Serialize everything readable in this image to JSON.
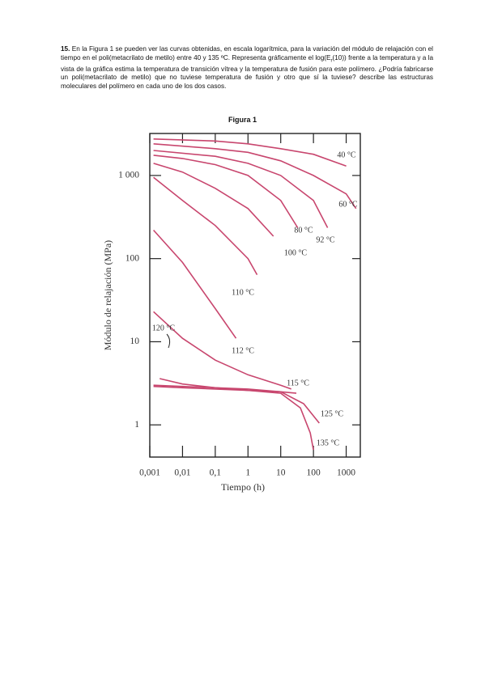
{
  "question": {
    "number": "15.",
    "text_before": "En la Figura 1 se pueden ver las curvas obtenidas, en escala logarítmica, para la variación del módulo de relajación con el tiempo en el poli(metacrilato de metilo) entre 40 y 135 ºC. Representa gráficamente el log(E",
    "subscript": "r",
    "text_after": "(10)) frente a la temperatura y a la vista de la gráfica estima la temperatura de transición vítrea y la temperatura de fusión para este polímero. ¿Podría fabricarse un poli(metacrilato de metilo) que no tuviese temperatura de fusión y otro que sí la tuviese? describe las estructuras moleculares del polímero en cada uno de los dos casos."
  },
  "figure_caption": "Figura 1",
  "chart_data": {
    "type": "line",
    "x_label": "Tiempo (h)",
    "y_label": "Módulo de relajación (MPa)",
    "log_x": true,
    "log_y": true,
    "color": "#c8466e",
    "xlim": [
      0.001,
      2700
    ],
    "ylim": [
      0.41,
      3200
    ],
    "xticks": [
      {
        "value": 0.001,
        "label": "0,001"
      },
      {
        "value": 0.01,
        "label": "0,01"
      },
      {
        "value": 0.1,
        "label": "0,1"
      },
      1,
      10,
      100,
      {
        "value": 1000,
        "label": "1000"
      }
    ],
    "yticks": [
      1,
      10,
      100,
      {
        "value": 1000,
        "label": "1 000"
      }
    ],
    "series": [
      {
        "name": "40 °C",
        "x": [
          0.0013,
          0.1,
          1,
          10,
          100,
          1000
        ],
        "values": [
          2750,
          2600,
          2400,
          2100,
          1800,
          1300
        ]
      },
      {
        "name": "60 °C",
        "x": [
          0.0013,
          0.1,
          1,
          10,
          100,
          1000,
          2000
        ],
        "values": [
          2400,
          2100,
          1900,
          1500,
          1000,
          600,
          400
        ]
      },
      {
        "name": "80 °C",
        "x": [
          0.0013,
          0.1,
          1,
          10,
          100,
          270
        ],
        "values": [
          2000,
          1700,
          1400,
          1000,
          500,
          235
        ]
      },
      {
        "name": "92 °C",
        "x": [
          0.0013,
          0.01,
          0.1,
          1,
          10,
          33
        ],
        "values": [
          1750,
          1600,
          1350,
          1000,
          500,
          235
        ]
      },
      {
        "name": "100 °C",
        "x": [
          0.0013,
          0.01,
          0.1,
          1,
          6
        ],
        "values": [
          1400,
          1100,
          700,
          400,
          186
        ]
      },
      {
        "name": "110 °C",
        "x": [
          0.0013,
          0.01,
          0.1,
          1,
          1.9
        ],
        "values": [
          950,
          500,
          250,
          100,
          64
        ]
      },
      {
        "name": "112 °C",
        "x": [
          0.0013,
          0.01,
          0.1,
          0.43
        ],
        "values": [
          220,
          90,
          25,
          11
        ]
      },
      {
        "name": "115 °C",
        "x": [
          0.0013,
          0.01,
          0.1,
          1,
          10,
          21
        ],
        "values": [
          23,
          11,
          6,
          4,
          3,
          2.7
        ]
      },
      {
        "name": "120 °C",
        "x": [
          0.002,
          0.01,
          0.1,
          1,
          10,
          30
        ],
        "values": [
          3.6,
          3.1,
          2.8,
          2.6,
          2.5,
          2.4
        ]
      },
      {
        "name": "125 °C",
        "x": [
          0.0013,
          0.01,
          0.1,
          1,
          10,
          50,
          150
        ],
        "values": [
          3.0,
          2.9,
          2.8,
          2.7,
          2.5,
          1.8,
          1.05
        ]
      },
      {
        "name": "135 °C",
        "x": [
          0.0013,
          0.01,
          0.1,
          1,
          10,
          40,
          80,
          100
        ],
        "values": [
          2.9,
          2.8,
          2.7,
          2.6,
          2.4,
          1.6,
          0.8,
          0.5
        ]
      }
    ]
  }
}
